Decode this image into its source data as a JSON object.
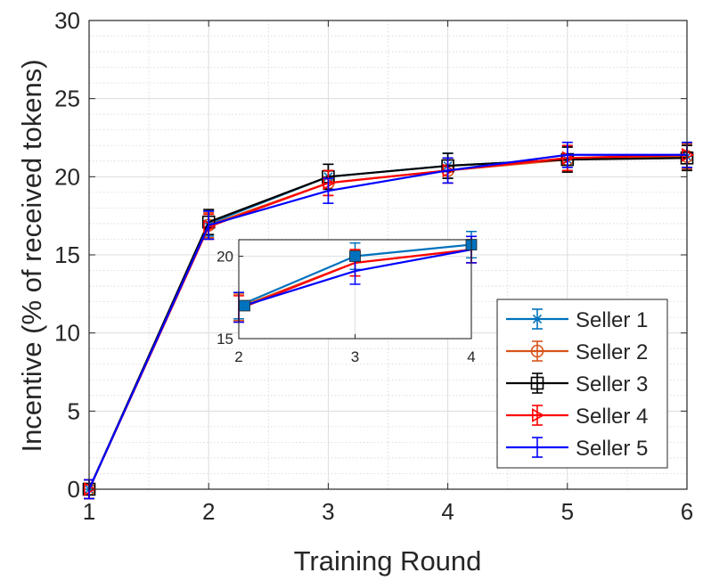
{
  "chart_data": [
    {
      "type": "line",
      "role": "main",
      "xlabel": "Training Round",
      "ylabel": "Incentive (% of received tokens)",
      "xlim": [
        1,
        6
      ],
      "ylim": [
        0,
        30
      ],
      "xticks": [
        1,
        2,
        3,
        4,
        5,
        6
      ],
      "yticks": [
        0,
        5,
        10,
        15,
        20,
        25,
        30
      ],
      "grid": true,
      "minor_grid": true,
      "error_bars": true,
      "legend_position": "bottom-right",
      "x": [
        1,
        2,
        3,
        4,
        5,
        6
      ],
      "series": [
        {
          "name": "Seller 1",
          "color": "#0072BD",
          "marker": "asterisk",
          "values": [
            0,
            17.0,
            20.0,
            20.7,
            21.1,
            21.3
          ],
          "err": [
            0.6,
            0.8,
            0.8,
            0.8,
            0.8,
            0.8
          ]
        },
        {
          "name": "Seller 2",
          "color": "#D95319",
          "marker": "circle",
          "values": [
            0,
            16.9,
            19.6,
            20.4,
            21.1,
            21.3
          ],
          "err": [
            0.6,
            0.8,
            0.8,
            0.8,
            0.8,
            0.8
          ]
        },
        {
          "name": "Seller 3",
          "color": "#000000",
          "marker": "square",
          "values": [
            0,
            17.1,
            20.0,
            20.7,
            21.1,
            21.2
          ],
          "err": [
            0.6,
            0.8,
            0.8,
            0.8,
            0.8,
            0.8
          ]
        },
        {
          "name": "Seller 4",
          "color": "#FF0000",
          "marker": "triangle-right",
          "values": [
            0,
            16.8,
            19.6,
            20.4,
            21.2,
            21.4
          ],
          "err": [
            0.6,
            0.8,
            0.8,
            0.8,
            0.8,
            0.8
          ]
        },
        {
          "name": "Seller 5",
          "color": "#0000FF",
          "marker": "none",
          "values": [
            0,
            16.9,
            19.1,
            20.4,
            21.4,
            21.4
          ],
          "err": [
            0.6,
            0.9,
            0.8,
            0.8,
            0.8,
            0.8
          ]
        }
      ]
    },
    {
      "type": "line",
      "role": "inset",
      "xlim": [
        2,
        4
      ],
      "ylim": [
        15,
        21
      ],
      "xticks": [
        2,
        3,
        4
      ],
      "yticks": [
        15,
        20
      ],
      "grid": true,
      "error_bars": true,
      "x": [
        2,
        3,
        4
      ],
      "series": [
        {
          "color": "#0072BD",
          "values": [
            17.0,
            20.0,
            20.7
          ],
          "err": [
            0.8,
            0.8,
            0.8
          ]
        },
        {
          "color": "#D95319",
          "values": [
            16.9,
            19.6,
            20.4
          ],
          "err": [
            0.8,
            0.8,
            0.8
          ]
        },
        {
          "color": "#FF0000",
          "values": [
            16.8,
            19.6,
            20.4
          ],
          "err": [
            0.8,
            0.8,
            0.8
          ]
        },
        {
          "color": "#0000FF",
          "values": [
            16.9,
            19.1,
            20.4
          ],
          "err": [
            0.9,
            0.8,
            0.8
          ]
        }
      ],
      "markers": [
        {
          "x": 2.05,
          "y": 17.0,
          "color": "#0072BD",
          "shape": "square-filled"
        },
        {
          "x": 3.0,
          "y": 20.0,
          "color": "#0072BD",
          "shape": "square-filled"
        },
        {
          "x": 4.0,
          "y": 20.7,
          "color": "#0072BD",
          "shape": "square-filled"
        }
      ]
    }
  ]
}
